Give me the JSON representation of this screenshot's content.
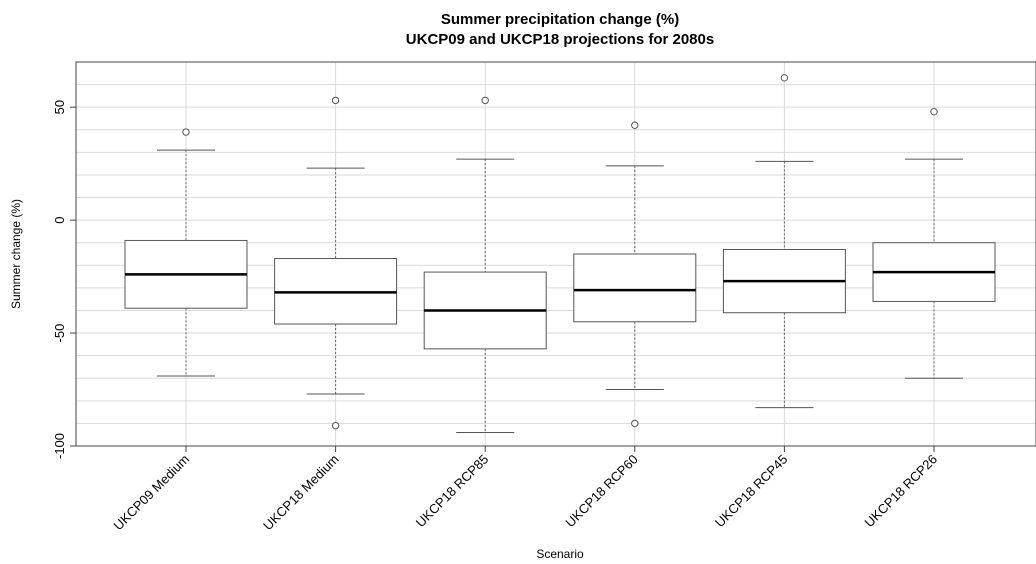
{
  "chart_data": {
    "type": "boxplot",
    "title": "Summer precipitation change (%)",
    "subtitle": "UKCP09 and UKCP18 projections for 2080s",
    "xlabel": "Scenario",
    "ylabel": "Summer change (%)",
    "ylim": [
      -100,
      70
    ],
    "yticks": [
      -100,
      -50,
      0,
      50
    ],
    "grid": true,
    "categories": [
      "UKCP09 Medium",
      "UKCP18 Medium",
      "UKCP18 RCP85",
      "UKCP18 RCP60",
      "UKCP18 RCP45",
      "UKCP18 RCP26"
    ],
    "series": [
      {
        "category": "UKCP09 Medium",
        "min": -69,
        "q1": -39,
        "median": -24,
        "q3": -9,
        "max": 31,
        "outliers": [
          39
        ]
      },
      {
        "category": "UKCP18 Medium",
        "min": -77,
        "q1": -46,
        "median": -32,
        "q3": -17,
        "max": 23,
        "outliers": [
          53,
          -91
        ]
      },
      {
        "category": "UKCP18 RCP85",
        "min": -94,
        "q1": -57,
        "median": -40,
        "q3": -23,
        "max": 27,
        "outliers": [
          53
        ]
      },
      {
        "category": "UKCP18 RCP60",
        "min": -75,
        "q1": -45,
        "median": -31,
        "q3": -15,
        "max": 24,
        "outliers": [
          42,
          -90
        ]
      },
      {
        "category": "UKCP18 RCP45",
        "min": -83,
        "q1": -41,
        "median": -27,
        "q3": -13,
        "max": 26,
        "outliers": [
          63
        ]
      },
      {
        "category": "UKCP18 RCP26",
        "min": -70,
        "q1": -36,
        "median": -23,
        "q3": -10,
        "max": 27,
        "outliers": [
          48
        ]
      }
    ]
  }
}
